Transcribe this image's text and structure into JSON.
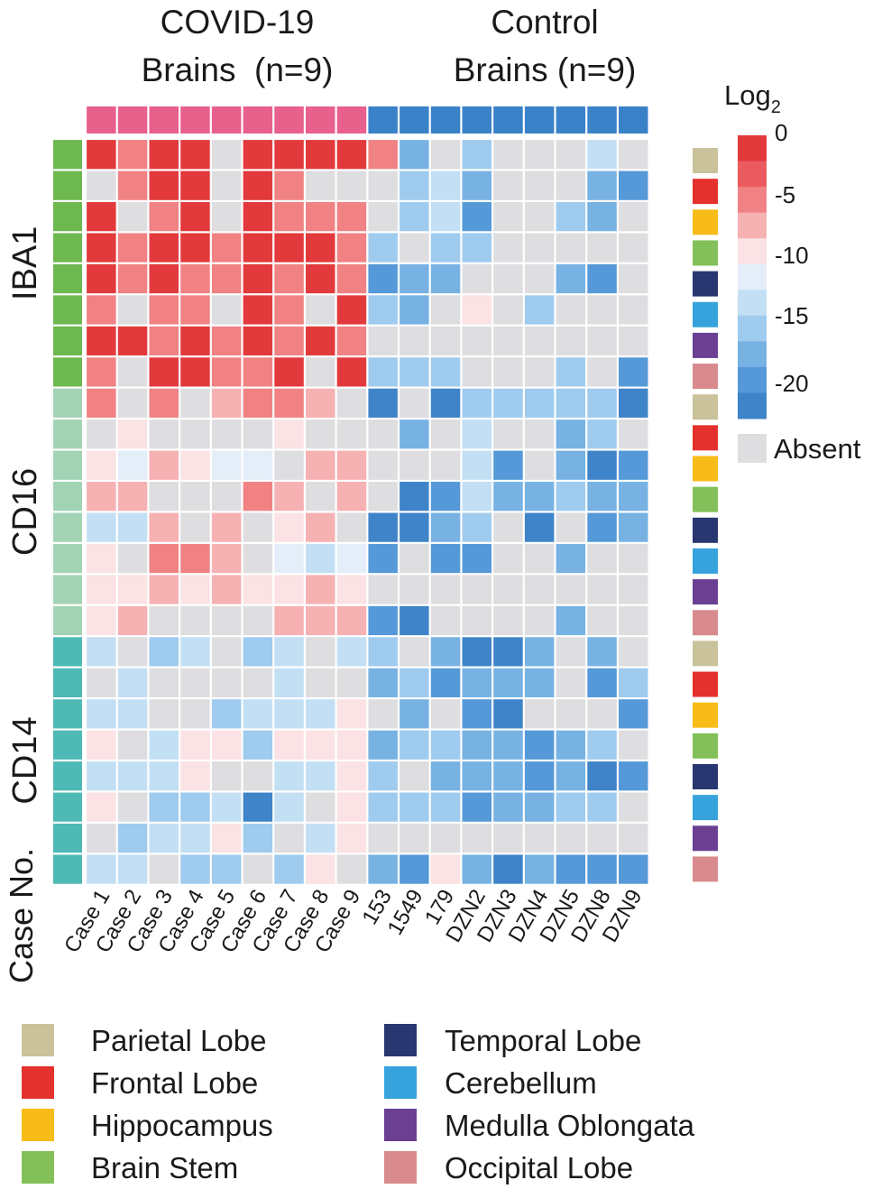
{
  "chart_data": {
    "type": "heatmap",
    "group_titles": [
      {
        "line1": "COVID-19",
        "line2": "Brains  (n=9)",
        "color": "#E8608C"
      },
      {
        "line1": "Control",
        "line2": "Brains (n=9)",
        "color": "#3A82C8"
      }
    ],
    "columns": [
      "Case 1",
      "Case 2",
      "Case 3",
      "Case 4",
      "Case 5",
      "Case 6",
      "Case 7",
      "Case 8",
      "Case 9",
      "153",
      "1549",
      "179",
      "DZN2",
      "DZN3",
      "DZN4",
      "DZN5",
      "DZN8",
      "DZN9"
    ],
    "column_groups": [
      0,
      0,
      0,
      0,
      0,
      0,
      0,
      0,
      0,
      1,
      1,
      1,
      1,
      1,
      1,
      1,
      1,
      1
    ],
    "column_axis_label": "Case No.",
    "row_groups": [
      {
        "label": "IBA1",
        "color": "#6DB84F"
      },
      {
        "label": "CD16",
        "color": "#A2D3B5"
      },
      {
        "label": "CD14",
        "color": "#4EB9B5"
      }
    ],
    "regions": [
      "Parietal Lobe",
      "Frontal Lobe",
      "Hippocampus",
      "Brain Stem",
      "Temporal Lobe",
      "Cerebellum",
      "Medulla Oblongata",
      "Occipital Lobe"
    ],
    "region_colors": [
      "#C9C29A",
      "#E4312E",
      "#F8BC18",
      "#83C05A",
      "#293770",
      "#36A3DD",
      "#6B3F91",
      "#D88A8C"
    ],
    "absent_value": null,
    "values": [
      [
        0,
        -4,
        0,
        0,
        null,
        0,
        0,
        0,
        0,
        -4,
        -15,
        null,
        -13,
        null,
        null,
        null,
        -11,
        null
      ],
      [
        null,
        -4,
        0,
        0,
        null,
        0,
        -4,
        null,
        null,
        null,
        -13,
        -11,
        -15,
        null,
        null,
        null,
        -15,
        -17
      ],
      [
        0,
        null,
        -4,
        0,
        null,
        0,
        -4,
        -4,
        -4,
        null,
        -13,
        -11,
        -17,
        null,
        null,
        -13,
        -15,
        null
      ],
      [
        0,
        -4,
        0,
        0,
        -4,
        0,
        0,
        0,
        -4,
        -13,
        null,
        -13,
        -13,
        null,
        null,
        null,
        null,
        null
      ],
      [
        0,
        -4,
        0,
        -4,
        -4,
        0,
        -4,
        0,
        -4,
        -17,
        -15,
        -15,
        null,
        null,
        null,
        -15,
        -17,
        null
      ],
      [
        -4,
        null,
        -4,
        -4,
        null,
        0,
        -4,
        null,
        0,
        -13,
        -15,
        null,
        -8,
        null,
        -13,
        null,
        null,
        null
      ],
      [
        0,
        0,
        -4,
        0,
        -4,
        0,
        -4,
        0,
        -4,
        null,
        null,
        null,
        null,
        null,
        null,
        null,
        null,
        null
      ],
      [
        -4,
        null,
        0,
        0,
        -4,
        -4,
        0,
        null,
        0,
        -13,
        -13,
        -13,
        null,
        null,
        null,
        -13,
        null,
        -17
      ],
      [
        -4,
        null,
        -4,
        null,
        -6,
        -4,
        -4,
        -6,
        null,
        -19,
        null,
        -19,
        -13,
        -13,
        -13,
        -13,
        -13,
        -19
      ],
      [
        null,
        -8,
        null,
        null,
        null,
        null,
        -8,
        null,
        null,
        null,
        -15,
        null,
        -11,
        null,
        null,
        -15,
        -13,
        null
      ],
      [
        -8,
        -10,
        -6,
        -8,
        -10,
        -10,
        null,
        -6,
        -6,
        null,
        null,
        null,
        -11,
        -17,
        null,
        -15,
        -20,
        -17
      ],
      [
        -6,
        -6,
        null,
        null,
        null,
        -4,
        -6,
        null,
        -6,
        null,
        -19,
        -17,
        -11,
        -15,
        -15,
        -13,
        -15,
        -15
      ],
      [
        -11,
        -11,
        -6,
        null,
        -6,
        null,
        -8,
        -6,
        null,
        -19,
        -19,
        -15,
        -13,
        null,
        -19,
        null,
        -17,
        -15
      ],
      [
        -8,
        null,
        -4,
        -4,
        -6,
        null,
        -10,
        -11,
        -10,
        -17,
        null,
        -17,
        -17,
        null,
        null,
        -15,
        null,
        null
      ],
      [
        -8,
        -8,
        -6,
        -8,
        -6,
        -8,
        -8,
        -6,
        -8,
        null,
        null,
        null,
        null,
        null,
        null,
        null,
        null,
        null
      ],
      [
        -8,
        -6,
        null,
        null,
        null,
        null,
        -6,
        -6,
        -6,
        -17,
        -19,
        null,
        null,
        null,
        null,
        -15,
        null,
        null
      ],
      [
        -11,
        null,
        -13,
        -11,
        null,
        -13,
        -11,
        null,
        -11,
        -13,
        null,
        -15,
        -20,
        -19,
        -15,
        null,
        -15,
        null
      ],
      [
        null,
        -11,
        null,
        null,
        null,
        null,
        -11,
        null,
        null,
        -15,
        -13,
        -17,
        -15,
        -15,
        -15,
        null,
        -17,
        -13
      ],
      [
        -11,
        -11,
        null,
        null,
        -13,
        -11,
        -11,
        -11,
        -8,
        null,
        -15,
        null,
        -17,
        -19,
        null,
        null,
        null,
        -17
      ],
      [
        -8,
        null,
        -11,
        -8,
        -8,
        -13,
        -8,
        -8,
        -8,
        -15,
        -13,
        -13,
        -15,
        -15,
        -17,
        -15,
        -13,
        null
      ],
      [
        -11,
        -11,
        -11,
        -8,
        null,
        null,
        -11,
        -11,
        -8,
        -13,
        null,
        -15,
        -15,
        -15,
        -17,
        -15,
        -19,
        -17
      ],
      [
        -8,
        null,
        -13,
        -13,
        -11,
        -19,
        -11,
        null,
        -8,
        -13,
        -13,
        -13,
        -17,
        -15,
        -15,
        -13,
        -13,
        null
      ],
      [
        null,
        -13,
        -11,
        -11,
        -8,
        -13,
        null,
        -11,
        -8,
        null,
        null,
        null,
        null,
        null,
        null,
        null,
        null,
        null
      ],
      [
        -11,
        -11,
        null,
        -13,
        -13,
        null,
        -13,
        -8,
        null,
        -15,
        -17,
        -8,
        -15,
        -19,
        -15,
        -17,
        -17,
        -17
      ]
    ],
    "colorbar": {
      "title": "Log",
      "title_subscript": "2",
      "tick_labels": [
        "0",
        "-5",
        "-10",
        "-15",
        "-20"
      ],
      "range": [
        -20,
        0
      ],
      "stops": [
        "#E23A3C",
        "#EB5A5E",
        "#F08284",
        "#F6B1B3",
        "#FBE2E4",
        "#E3EEF8",
        "#C2DFF4",
        "#9FCBEE",
        "#77B2E3",
        "#5599D8",
        "#3F84C8"
      ],
      "absent_label": "Absent",
      "absent_color": "#DEDDE0"
    }
  }
}
